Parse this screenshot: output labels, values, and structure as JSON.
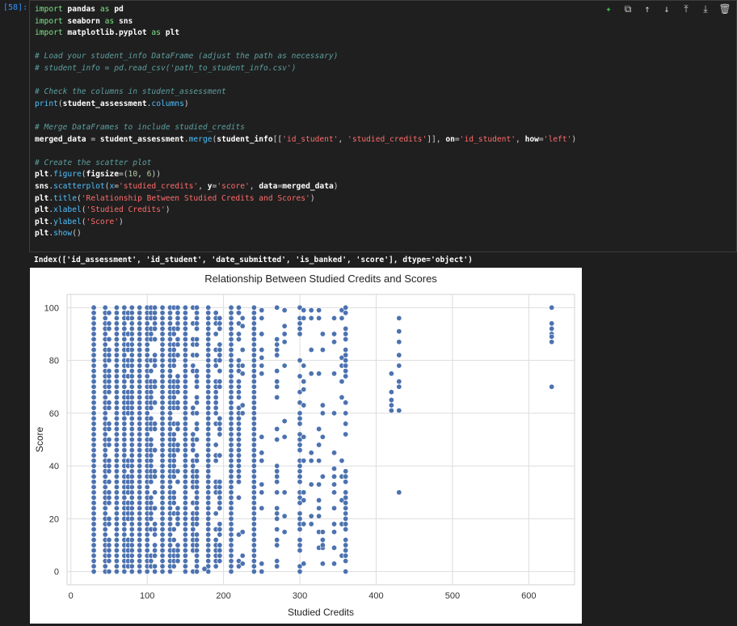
{
  "cell": {
    "prompt": "[58]:",
    "code_lines": [
      [
        [
          "kw",
          "import"
        ],
        [
          "plain",
          " pandas "
        ],
        [
          "kw",
          "as"
        ],
        [
          "plain",
          " pd"
        ]
      ],
      [
        [
          "kw",
          "import"
        ],
        [
          "plain",
          " seaborn "
        ],
        [
          "kw",
          "as"
        ],
        [
          "plain",
          " sns"
        ]
      ],
      [
        [
          "kw",
          "import"
        ],
        [
          "plain",
          " matplotlib.pyplot "
        ],
        [
          "kw",
          "as"
        ],
        [
          "plain",
          " plt"
        ]
      ],
      [],
      [
        [
          "cm",
          "# Load your student_info DataFrame (adjust the path as necessary)"
        ]
      ],
      [
        [
          "cm",
          "# student_info = pd.read_csv('path_to_student_info.csv')"
        ]
      ],
      [],
      [
        [
          "cm",
          "# Check the columns in student_assessment"
        ]
      ],
      [
        [
          "fn",
          "print"
        ],
        [
          "op",
          "("
        ],
        [
          "plain",
          "student_assessment"
        ],
        [
          "op",
          "."
        ],
        [
          "fn",
          "columns"
        ],
        [
          "op",
          ")"
        ]
      ],
      [],
      [
        [
          "cm",
          "# Merge DataFrames to include studied_credits"
        ]
      ],
      [
        [
          "plain",
          "merged_data "
        ],
        [
          "op",
          "="
        ],
        [
          "plain",
          " student_assessment"
        ],
        [
          "op",
          "."
        ],
        [
          "fn",
          "merge"
        ],
        [
          "op",
          "("
        ],
        [
          "plain",
          "student_info"
        ],
        [
          "op",
          "[["
        ],
        [
          "str",
          "'id_student'"
        ],
        [
          "op",
          ", "
        ],
        [
          "str",
          "'studied_credits'"
        ],
        [
          "op",
          "]], "
        ],
        [
          "plain",
          "on"
        ],
        [
          "op",
          "="
        ],
        [
          "str",
          "'id_student'"
        ],
        [
          "op",
          ", "
        ],
        [
          "plain",
          "how"
        ],
        [
          "op",
          "="
        ],
        [
          "str",
          "'left'"
        ],
        [
          "op",
          ")"
        ]
      ],
      [],
      [
        [
          "cm",
          "# Create the scatter plot"
        ]
      ],
      [
        [
          "plain",
          "plt"
        ],
        [
          "op",
          "."
        ],
        [
          "fn",
          "figure"
        ],
        [
          "op",
          "("
        ],
        [
          "plain",
          "figsize"
        ],
        [
          "op",
          "=("
        ],
        [
          "num",
          "10"
        ],
        [
          "op",
          ", "
        ],
        [
          "num",
          "6"
        ],
        [
          "op",
          "))"
        ]
      ],
      [
        [
          "plain",
          "sns"
        ],
        [
          "op",
          "."
        ],
        [
          "fn",
          "scatterplot"
        ],
        [
          "op",
          "("
        ],
        [
          "fn",
          "x"
        ],
        [
          "op",
          "="
        ],
        [
          "str",
          "'studied_credits'"
        ],
        [
          "op",
          ", "
        ],
        [
          "plain",
          "y"
        ],
        [
          "op",
          "="
        ],
        [
          "str",
          "'score'"
        ],
        [
          "op",
          ", "
        ],
        [
          "plain",
          "data"
        ],
        [
          "op",
          "="
        ],
        [
          "plain",
          "merged_data"
        ],
        [
          "op",
          ")"
        ]
      ],
      [
        [
          "plain",
          "plt"
        ],
        [
          "op",
          "."
        ],
        [
          "fn",
          "title"
        ],
        [
          "op",
          "("
        ],
        [
          "str",
          "'Relationship Between Studied Credits and Scores'"
        ],
        [
          "op",
          ")"
        ]
      ],
      [
        [
          "plain",
          "plt"
        ],
        [
          "op",
          "."
        ],
        [
          "fn",
          "xlabel"
        ],
        [
          "op",
          "("
        ],
        [
          "str",
          "'Studied Credits'"
        ],
        [
          "op",
          ")"
        ]
      ],
      [
        [
          "plain",
          "plt"
        ],
        [
          "op",
          "."
        ],
        [
          "fn",
          "ylabel"
        ],
        [
          "op",
          "("
        ],
        [
          "str",
          "'Score'"
        ],
        [
          "op",
          ")"
        ]
      ],
      [
        [
          "plain",
          "plt"
        ],
        [
          "op",
          "."
        ],
        [
          "fn",
          "show"
        ],
        [
          "op",
          "()"
        ]
      ]
    ]
  },
  "toolbar": {
    "icons": [
      "sparkle-icon",
      "copy-icon",
      "arrow-up-icon",
      "arrow-down-icon",
      "insert-above-icon",
      "insert-below-icon",
      "trash-icon"
    ],
    "glyphs": [
      "✦",
      "⧉",
      "↑",
      "↓",
      "⤒",
      "⤓",
      "🗑"
    ]
  },
  "output": {
    "text": "Index(['id_assessment', 'id_student', 'date_submitted', 'is_banked', 'score'], dtype='object')"
  },
  "chart_data": {
    "type": "scatter",
    "title": "Relationship Between Studied Credits and Scores",
    "xlabel": "Studied Credits",
    "ylabel": "Score",
    "xlim": [
      -5,
      660
    ],
    "ylim": [
      -5,
      105
    ],
    "xticks": [
      0,
      100,
      200,
      300,
      400,
      500,
      600
    ],
    "yticks": [
      0,
      20,
      40,
      60,
      80,
      100
    ],
    "grid": true,
    "marker_color": "#4c72b0",
    "columns": [
      {
        "x": 30,
        "density": "full"
      },
      {
        "x": 45,
        "density": "full"
      },
      {
        "x": 50,
        "density": "partial"
      },
      {
        "x": 60,
        "density": "full"
      },
      {
        "x": 70,
        "density": "full"
      },
      {
        "x": 75,
        "density": "partial"
      },
      {
        "x": 80,
        "density": "full"
      },
      {
        "x": 90,
        "density": "full"
      },
      {
        "x": 100,
        "density": "full"
      },
      {
        "x": 105,
        "density": "partial"
      },
      {
        "x": 110,
        "density": "partial"
      },
      {
        "x": 120,
        "density": "full"
      },
      {
        "x": 130,
        "density": "full"
      },
      {
        "x": 135,
        "density": "partial"
      },
      {
        "x": 140,
        "density": "partial"
      },
      {
        "x": 150,
        "density": "full"
      },
      {
        "x": 160,
        "density": "partial"
      },
      {
        "x": 165,
        "density": "partial"
      },
      {
        "x": 180,
        "density": "full"
      },
      {
        "x": 190,
        "density": "partial"
      },
      {
        "x": 195,
        "density": "partial"
      },
      {
        "x": 210,
        "density": "full"
      },
      {
        "x": 220,
        "density": "partial"
      },
      {
        "x": 225,
        "density": "sparse"
      },
      {
        "x": 240,
        "density": "full"
      },
      {
        "x": 250,
        "density": "sparse"
      },
      {
        "x": 270,
        "density": "partial"
      },
      {
        "x": 280,
        "density": "sparse"
      },
      {
        "x": 300,
        "density": "partial"
      },
      {
        "x": 305,
        "density": "sparse"
      },
      {
        "x": 315,
        "density": "sparse"
      },
      {
        "x": 325,
        "density": "sparse"
      },
      {
        "x": 330,
        "density": "sparse"
      },
      {
        "x": 345,
        "density": "sparse"
      },
      {
        "x": 355,
        "density": "sparse"
      },
      {
        "x": 360,
        "density": "partial"
      }
    ],
    "points": [
      {
        "x": 420,
        "y": 75
      },
      {
        "x": 420,
        "y": 68
      },
      {
        "x": 420,
        "y": 65
      },
      {
        "x": 420,
        "y": 63
      },
      {
        "x": 420,
        "y": 61
      },
      {
        "x": 430,
        "y": 96
      },
      {
        "x": 430,
        "y": 91
      },
      {
        "x": 430,
        "y": 87
      },
      {
        "x": 430,
        "y": 82
      },
      {
        "x": 430,
        "y": 78
      },
      {
        "x": 430,
        "y": 72
      },
      {
        "x": 430,
        "y": 70
      },
      {
        "x": 430,
        "y": 61
      },
      {
        "x": 430,
        "y": 30
      },
      {
        "x": 630,
        "y": 100
      },
      {
        "x": 630,
        "y": 94
      },
      {
        "x": 630,
        "y": 92
      },
      {
        "x": 630,
        "y": 90
      },
      {
        "x": 630,
        "y": 89
      },
      {
        "x": 630,
        "y": 87
      },
      {
        "x": 630,
        "y": 70
      },
      {
        "x": 330,
        "y": 10
      },
      {
        "x": 300,
        "y": 0
      },
      {
        "x": 250,
        "y": 3
      },
      {
        "x": 175,
        "y": 1
      }
    ]
  }
}
